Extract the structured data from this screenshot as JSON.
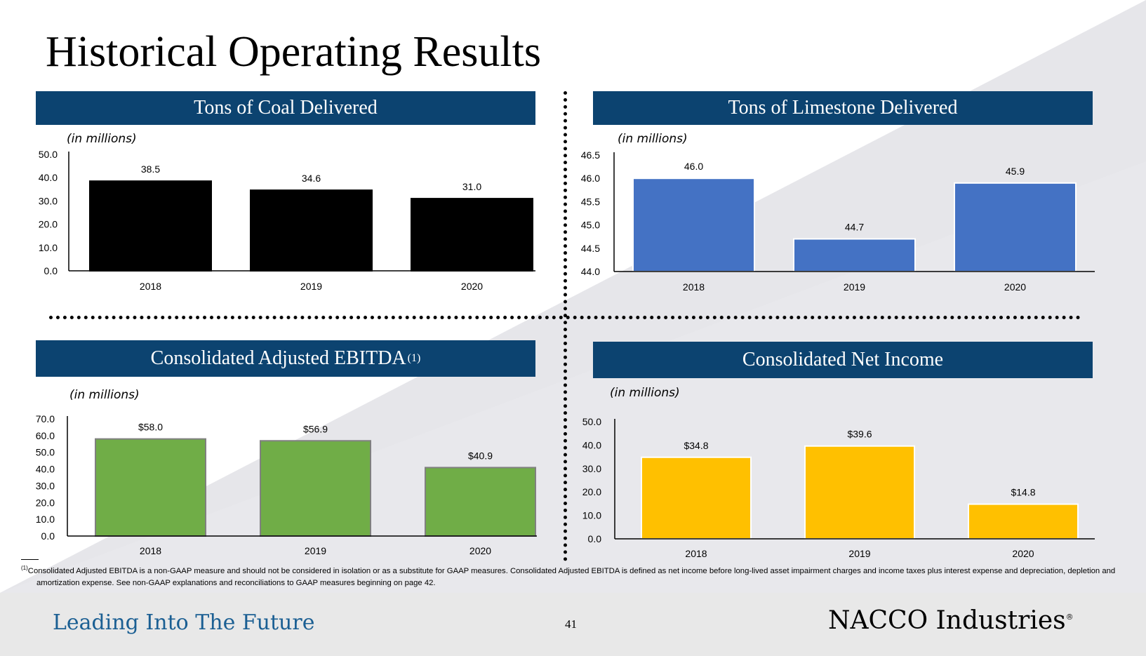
{
  "page": {
    "title": "Historical Operating Results",
    "page_number": "41",
    "tagline": "Leading Into The Future",
    "logo_text": "NACCO Industries",
    "logo_mark": "®",
    "footnote": {
      "marker": "(1)",
      "line1": "Consolidated Adjusted EBITDA is a non-GAAP measure and should not be considered in isolation or as a substitute for GAAP measures.  Consolidated Adjusted EBITDA is defined as net income before long-lived asset impairment charges and income taxes plus interest expense and depreciation, depletion and",
      "line2": "amortization expense. See non-GAAP explanations and reconciliations to GAAP measures beginning on page 42."
    },
    "colors": {
      "header": "#0c4370",
      "tagline": "#1b5f93"
    }
  },
  "chart_data": [
    {
      "type": "bar",
      "title": "Tons of Coal Delivered",
      "unit_label": "(in millions)",
      "categories": [
        "2018",
        "2019",
        "2020"
      ],
      "values": [
        38.5,
        34.6,
        31.0
      ],
      "data_labels": [
        "38.5",
        "34.6",
        "31.0"
      ],
      "ylim": [
        0,
        50
      ],
      "yticks": [
        "0.0",
        "10.0",
        "20.0",
        "30.0",
        "40.0",
        "50.0"
      ],
      "bar_color": "#000000",
      "bar_stroke": "#000000",
      "grid": false
    },
    {
      "type": "bar",
      "title": "Tons of Limestone Delivered",
      "unit_label": "(in millions)",
      "categories": [
        "2018",
        "2019",
        "2020"
      ],
      "values": [
        46.0,
        44.7,
        45.9
      ],
      "data_labels": [
        "46.0",
        "44.7",
        "45.9"
      ],
      "ylim": [
        44,
        46.5
      ],
      "yticks": [
        "44.0",
        "44.5",
        "45.0",
        "45.5",
        "46.0",
        "46.5"
      ],
      "bar_color": "#4472c4",
      "bar_stroke": "#ffffff",
      "grid": false
    },
    {
      "type": "bar",
      "title": "Consolidated Adjusted EBITDA",
      "title_sup": "(1)",
      "unit_label": "(in millions)",
      "categories": [
        "2018",
        "2019",
        "2020"
      ],
      "values": [
        58.0,
        56.9,
        40.9
      ],
      "data_labels": [
        "$58.0",
        "$56.9",
        "$40.9"
      ],
      "ylim": [
        0,
        70
      ],
      "yticks": [
        "0.0",
        "10.0",
        "20.0",
        "30.0",
        "40.0",
        "50.0",
        "60.0",
        "70.0"
      ],
      "bar_color": "#70ad47",
      "bar_stroke": "#808080",
      "grid": false
    },
    {
      "type": "bar",
      "title": "Consolidated Net Income",
      "unit_label": "(in millions)",
      "categories": [
        "2018",
        "2019",
        "2020"
      ],
      "values": [
        34.8,
        39.6,
        14.8
      ],
      "data_labels": [
        "$34.8",
        "$39.6",
        "$14.8"
      ],
      "ylim": [
        0,
        50
      ],
      "yticks": [
        "0.0",
        "10.0",
        "20.0",
        "30.0",
        "40.0",
        "50.0"
      ],
      "bar_color": "#ffc000",
      "bar_stroke": "#ffffff",
      "grid": false
    }
  ]
}
